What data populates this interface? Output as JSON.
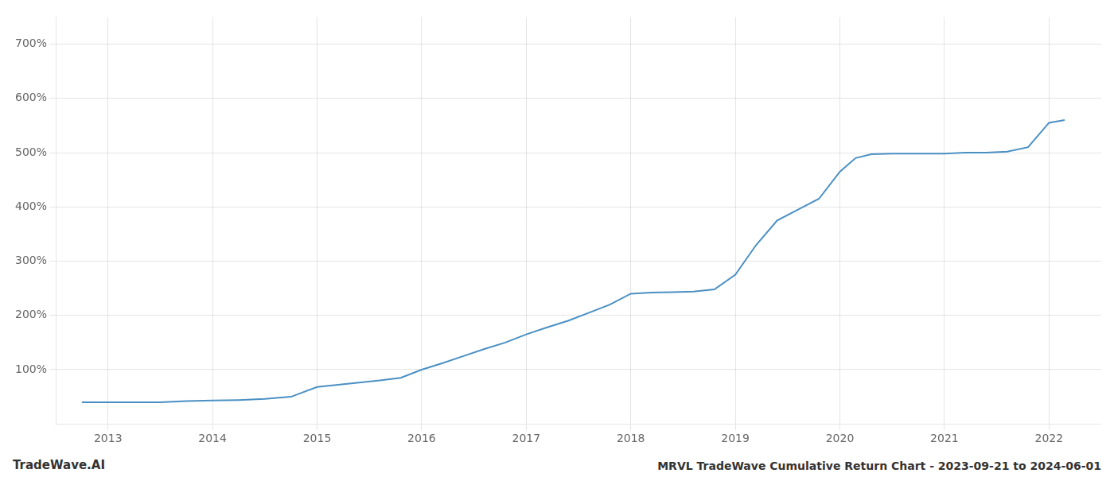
{
  "chart_data": {
    "type": "line",
    "title": "MRVL TradeWave Cumulative Return Chart - 2023-09-21 to 2024-06-01",
    "annotations": [
      "TradeWave.AI"
    ],
    "x": [
      2012.75,
      2013.0,
      2013.25,
      2013.5,
      2013.75,
      2014.0,
      2014.25,
      2014.5,
      2014.75,
      2015.0,
      2015.2,
      2015.4,
      2015.6,
      2015.8,
      2016.0,
      2016.2,
      2016.4,
      2016.6,
      2016.8,
      2017.0,
      2017.2,
      2017.4,
      2017.6,
      2017.8,
      2018.0,
      2018.2,
      2018.4,
      2018.6,
      2018.8,
      2019.0,
      2019.2,
      2019.4,
      2019.6,
      2019.8,
      2020.0,
      2020.15,
      2020.3,
      2020.5,
      2020.7,
      2020.85,
      2021.0,
      2021.2,
      2021.4,
      2021.6,
      2021.8,
      2022.0,
      2022.15
    ],
    "values": [
      40,
      40,
      40,
      40,
      42,
      43,
      44,
      46,
      50,
      68,
      72,
      76,
      80,
      85,
      100,
      112,
      125,
      138,
      150,
      165,
      178,
      190,
      205,
      220,
      240,
      242,
      243,
      244,
      248,
      275,
      330,
      375,
      395,
      415,
      465,
      490,
      497,
      498,
      498,
      498,
      498,
      500,
      500,
      502,
      510,
      555,
      560
    ],
    "color": "#4a90c4",
    "xlim": [
      2012.5,
      2022.5
    ],
    "xticks": [
      2013,
      2014,
      2015,
      2016,
      2017,
      2018,
      2019,
      2020,
      2021,
      2022
    ],
    "ylim": [
      0,
      750
    ],
    "yticks": [
      {
        "value": 100,
        "label": "100%"
      },
      {
        "value": 200,
        "label": "200%"
      },
      {
        "value": 300,
        "label": "300%"
      },
      {
        "value": 400,
        "label": "400%"
      },
      {
        "value": 500,
        "label": "500%"
      },
      {
        "value": 600,
        "label": "600%"
      },
      {
        "value": 700,
        "label": "700%"
      }
    ],
    "grid": true
  }
}
